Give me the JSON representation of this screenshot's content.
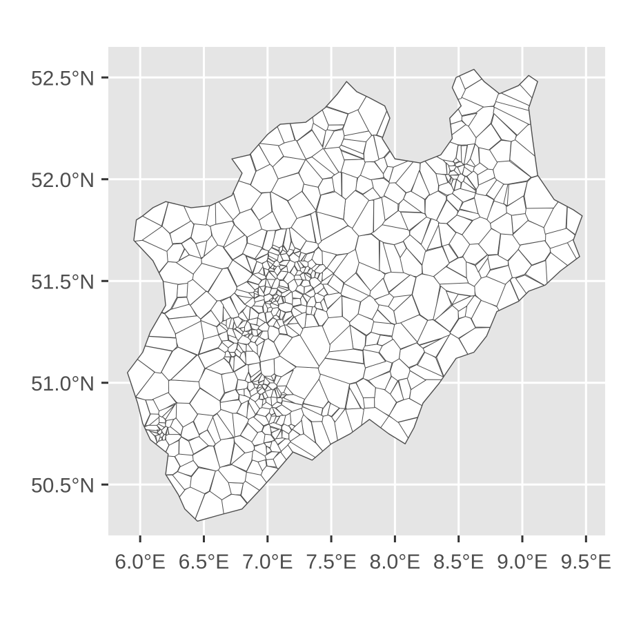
{
  "map": {
    "region": "North Rhine-Westphalia municipalities",
    "projection": "longitude-latitude",
    "xlim": [
      5.75,
      9.65
    ],
    "ylim": [
      50.25,
      52.65
    ],
    "panel_background": "#e5e5e5",
    "grid_color": "#ffffff",
    "fill_color": "#ffffff",
    "border_color": "#4d4d4d",
    "x_ticks": [
      {
        "value": 6.0,
        "label": "6.0°E"
      },
      {
        "value": 6.5,
        "label": "6.5°E"
      },
      {
        "value": 7.0,
        "label": "7.0°E"
      },
      {
        "value": 7.5,
        "label": "7.5°E"
      },
      {
        "value": 8.0,
        "label": "8.0°E"
      },
      {
        "value": 8.5,
        "label": "8.5°E"
      },
      {
        "value": 9.0,
        "label": "9.0°E"
      },
      {
        "value": 9.5,
        "label": "9.5°E"
      }
    ],
    "y_ticks": [
      {
        "value": 52.5,
        "label": "52.5°N"
      },
      {
        "value": 52.0,
        "label": "52.0°N"
      },
      {
        "value": 51.5,
        "label": "51.5°N"
      },
      {
        "value": 51.0,
        "label": "51.0°N"
      },
      {
        "value": 50.5,
        "label": "50.5°N"
      }
    ],
    "outline_lonlat": [
      [
        6.02,
        51.82
      ],
      [
        6.1,
        51.86
      ],
      [
        6.2,
        51.89
      ],
      [
        6.4,
        51.86
      ],
      [
        6.55,
        51.87
      ],
      [
        6.72,
        51.92
      ],
      [
        6.8,
        52.03
      ],
      [
        6.72,
        52.1
      ],
      [
        6.86,
        52.12
      ],
      [
        7.0,
        52.22
      ],
      [
        7.1,
        52.27
      ],
      [
        7.3,
        52.28
      ],
      [
        7.45,
        52.35
      ],
      [
        7.55,
        52.42
      ],
      [
        7.62,
        52.48
      ],
      [
        7.7,
        52.43
      ],
      [
        7.8,
        52.4
      ],
      [
        7.92,
        52.36
      ],
      [
        7.96,
        52.3
      ],
      [
        7.9,
        52.2
      ],
      [
        8.0,
        52.1
      ],
      [
        8.2,
        52.08
      ],
      [
        8.36,
        52.12
      ],
      [
        8.45,
        52.2
      ],
      [
        8.43,
        52.3
      ],
      [
        8.52,
        52.36
      ],
      [
        8.45,
        52.45
      ],
      [
        8.48,
        52.5
      ],
      [
        8.62,
        52.54
      ],
      [
        8.7,
        52.48
      ],
      [
        8.82,
        52.42
      ],
      [
        8.97,
        52.46
      ],
      [
        9.05,
        52.51
      ],
      [
        9.12,
        52.48
      ],
      [
        9.05,
        52.35
      ],
      [
        9.08,
        52.2
      ],
      [
        9.12,
        52.02
      ],
      [
        9.25,
        51.9
      ],
      [
        9.4,
        51.85
      ],
      [
        9.47,
        51.82
      ],
      [
        9.4,
        51.7
      ],
      [
        9.45,
        51.62
      ],
      [
        9.3,
        51.55
      ],
      [
        9.18,
        51.48
      ],
      [
        9.05,
        51.45
      ],
      [
        8.97,
        51.4
      ],
      [
        8.8,
        51.35
      ],
      [
        8.72,
        51.23
      ],
      [
        8.62,
        51.15
      ],
      [
        8.48,
        51.12
      ],
      [
        8.35,
        51.0
      ],
      [
        8.22,
        50.9
      ],
      [
        8.15,
        50.78
      ],
      [
        8.08,
        50.7
      ],
      [
        7.95,
        50.75
      ],
      [
        7.8,
        50.82
      ],
      [
        7.65,
        50.75
      ],
      [
        7.5,
        50.7
      ],
      [
        7.35,
        50.62
      ],
      [
        7.2,
        50.66
      ],
      [
        7.05,
        50.55
      ],
      [
        6.95,
        50.48
      ],
      [
        6.8,
        50.38
      ],
      [
        6.62,
        50.35
      ],
      [
        6.45,
        50.32
      ],
      [
        6.35,
        50.38
      ],
      [
        6.3,
        50.45
      ],
      [
        6.2,
        50.55
      ],
      [
        6.22,
        50.65
      ],
      [
        6.08,
        50.72
      ],
      [
        6.02,
        50.8
      ],
      [
        5.98,
        50.9
      ],
      [
        5.9,
        51.05
      ],
      [
        6.02,
        51.15
      ],
      [
        6.08,
        51.25
      ],
      [
        6.2,
        51.38
      ],
      [
        6.18,
        51.5
      ],
      [
        6.1,
        51.6
      ],
      [
        5.95,
        51.7
      ],
      [
        5.97,
        51.8
      ]
    ],
    "seed": 42
  }
}
